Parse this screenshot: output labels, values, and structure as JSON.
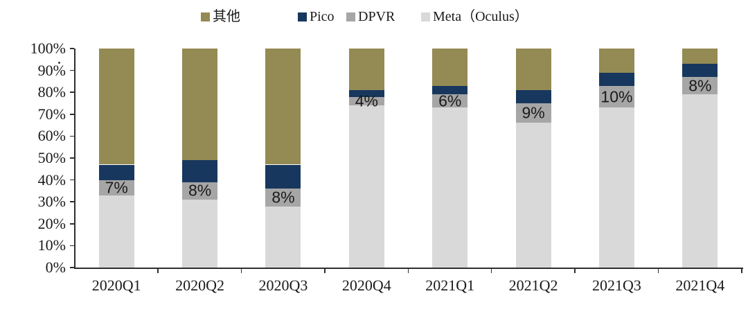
{
  "chart_data": {
    "type": "bar",
    "variant": "stacked-100-percent",
    "title": "",
    "xlabel": "",
    "ylabel": "",
    "ylim": [
      0,
      100
    ],
    "grid": false,
    "legend_position": "top",
    "categories": [
      "2020Q1",
      "2020Q2",
      "2020Q3",
      "2020Q4",
      "2021Q1",
      "2021Q2",
      "2021Q3",
      "2021Q4"
    ],
    "y_tick_labels": [
      "0%",
      "10%",
      "20%",
      "30%",
      "40%",
      "50%",
      "60%",
      "70%",
      "80%",
      "90%",
      "100%"
    ],
    "series": [
      {
        "name": "Meta（Oculus）",
        "slug": "meta-oculus",
        "color": "#D9D9D9",
        "values": [
          33,
          31,
          28,
          74,
          73,
          66,
          73,
          79
        ]
      },
      {
        "name": "DPVR",
        "slug": "dpvr",
        "color": "#A6A6A6",
        "values": [
          7,
          8,
          8,
          4,
          6,
          9,
          10,
          8
        ],
        "data_labels": [
          "7%",
          "8%",
          "8%",
          "4%",
          "6%",
          "9%",
          "10%",
          "8%"
        ]
      },
      {
        "name": "Pico",
        "slug": "pico",
        "color": "#17375E",
        "values": [
          7,
          10,
          11,
          3,
          4,
          6,
          6,
          6
        ]
      },
      {
        "name": "其他",
        "slug": "other",
        "color": "#948A54",
        "values": [
          53,
          51,
          53,
          19,
          17,
          19,
          11,
          7
        ]
      }
    ],
    "legend_order": [
      3,
      2,
      1,
      0
    ],
    "stray_mark": "."
  },
  "colors": {
    "background": "#FFFFFF",
    "axis": "#2E2E2E",
    "label_text": "#1A1A1A"
  }
}
